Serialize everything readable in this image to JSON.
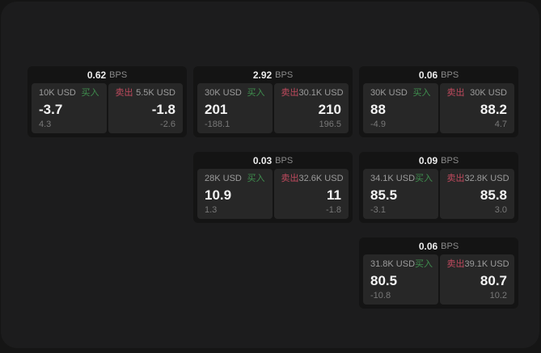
{
  "labels": {
    "bps_suffix": "BPS",
    "buy": "买入",
    "sell": "卖出"
  },
  "colors": {
    "buy_green": "#3f8e4e",
    "sell_red": "#c04a5e",
    "panel_bg": "#1c1c1d",
    "card_bg": "#141414",
    "tile_bg": "#272727"
  },
  "cards": [
    {
      "bps": "0.62",
      "col": 1,
      "row": 1,
      "buy": {
        "size": "10K USD",
        "price": "-3.7",
        "sub": "4.3"
      },
      "sell": {
        "size": "5.5K USD",
        "price": "-1.8",
        "sub": "-2.6"
      }
    },
    {
      "bps": "2.92",
      "col": 2,
      "row": 1,
      "buy": {
        "size": "30K USD",
        "price": "201",
        "sub": "-188.1"
      },
      "sell": {
        "size": "30.1K USD",
        "price": "210",
        "sub": "196.5"
      }
    },
    {
      "bps": "0.06",
      "col": 3,
      "row": 1,
      "buy": {
        "size": "30K USD",
        "price": "88",
        "sub": "-4.9"
      },
      "sell": {
        "size": "30K USD",
        "price": "88.2",
        "sub": "4.7"
      }
    },
    {
      "bps": "0.03",
      "col": 2,
      "row": 2,
      "buy": {
        "size": "28K USD",
        "price": "10.9",
        "sub": "1.3"
      },
      "sell": {
        "size": "32.6K USD",
        "price": "11",
        "sub": "-1.8"
      }
    },
    {
      "bps": "0.09",
      "col": 3,
      "row": 2,
      "buy": {
        "size": "34.1K USD",
        "price": "85.5",
        "sub": "-3.1"
      },
      "sell": {
        "size": "32.8K USD",
        "price": "85.8",
        "sub": "3.0"
      }
    },
    {
      "bps": "0.06",
      "col": 3,
      "row": 3,
      "buy": {
        "size": "31.8K USD",
        "price": "80.5",
        "sub": "-10.8"
      },
      "sell": {
        "size": "39.1K USD",
        "price": "80.7",
        "sub": "10.2"
      }
    }
  ]
}
